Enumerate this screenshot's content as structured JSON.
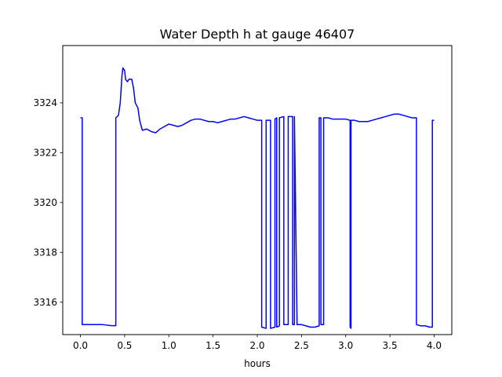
{
  "chart_data": {
    "type": "line",
    "title": "Water Depth h at gauge 46407",
    "xlabel": "hours",
    "ylabel": "",
    "xlim": [
      -0.2,
      4.2
    ],
    "ylim": [
      3314.7,
      3326.3
    ],
    "xticks": [
      0.0,
      0.5,
      1.0,
      1.5,
      2.0,
      2.5,
      3.0,
      3.5,
      4.0
    ],
    "xtick_labels": [
      "0.0",
      "0.5",
      "1.0",
      "1.5",
      "2.0",
      "2.5",
      "3.0",
      "3.5",
      "4.0"
    ],
    "yticks": [
      3316,
      3318,
      3320,
      3322,
      3324
    ],
    "ytick_labels": [
      "3316",
      "3318",
      "3320",
      "3322",
      "3324"
    ],
    "grid": false,
    "colors": {
      "series": "#0000ff",
      "axes": "#000000",
      "background": "#ffffff"
    },
    "series": [
      {
        "x": [
          0.0,
          0.02,
          0.02,
          0.05,
          0.1,
          0.15,
          0.2,
          0.25,
          0.3,
          0.35,
          0.4,
          0.4,
          0.43,
          0.45,
          0.47,
          0.48,
          0.5,
          0.51,
          0.53,
          0.55,
          0.58,
          0.6,
          0.62,
          0.65,
          0.67,
          0.7,
          0.75,
          0.8,
          0.85,
          0.9,
          0.95,
          1.0,
          1.05,
          1.1,
          1.15,
          1.2,
          1.25,
          1.3,
          1.35,
          1.4,
          1.45,
          1.5,
          1.55,
          1.6,
          1.65,
          1.7,
          1.75,
          1.8,
          1.85,
          1.9,
          1.95,
          2.0,
          2.05,
          2.05,
          2.1,
          2.1,
          2.15,
          2.15,
          2.2,
          2.2,
          2.22,
          2.22,
          2.25,
          2.25,
          2.3,
          2.3,
          2.35,
          2.35,
          2.4,
          2.4,
          2.42,
          2.42,
          2.45,
          2.5,
          2.55,
          2.6,
          2.65,
          2.7,
          2.7,
          2.72,
          2.72,
          2.75,
          2.75,
          2.8,
          2.85,
          2.9,
          2.95,
          3.0,
          3.05,
          3.05,
          3.06,
          3.06,
          3.1,
          3.15,
          3.2,
          3.25,
          3.3,
          3.35,
          3.4,
          3.45,
          3.5,
          3.55,
          3.6,
          3.65,
          3.7,
          3.75,
          3.8,
          3.8,
          3.85,
          3.9,
          3.95,
          3.98,
          3.98,
          4.0
        ],
        "y": [
          3323.4,
          3323.4,
          3315.1,
          3315.1,
          3315.1,
          3315.1,
          3315.1,
          3315.1,
          3315.08,
          3315.06,
          3315.06,
          3323.4,
          3323.5,
          3324.0,
          3325.1,
          3325.4,
          3325.3,
          3324.95,
          3324.85,
          3324.95,
          3324.95,
          3324.6,
          3324.0,
          3323.8,
          3323.3,
          3322.9,
          3322.95,
          3322.85,
          3322.8,
          3322.95,
          3323.05,
          3323.15,
          3323.1,
          3323.05,
          3323.1,
          3323.2,
          3323.3,
          3323.35,
          3323.35,
          3323.3,
          3323.25,
          3323.25,
          3323.2,
          3323.25,
          3323.3,
          3323.35,
          3323.35,
          3323.4,
          3323.45,
          3323.4,
          3323.35,
          3323.3,
          3323.3,
          3315.0,
          3314.95,
          3323.3,
          3323.3,
          3314.95,
          3315.0,
          3323.35,
          3323.4,
          3315.0,
          3315.05,
          3323.4,
          3323.45,
          3315.1,
          3315.1,
          3323.45,
          3323.45,
          3315.1,
          3315.1,
          3323.45,
          3315.1,
          3315.1,
          3315.05,
          3315.0,
          3315.0,
          3315.05,
          3323.4,
          3323.4,
          3315.1,
          3315.1,
          3323.4,
          3323.4,
          3323.35,
          3323.35,
          3323.35,
          3323.35,
          3323.3,
          3315.0,
          3314.95,
          3323.3,
          3323.3,
          3323.25,
          3323.25,
          3323.25,
          3323.3,
          3323.35,
          3323.4,
          3323.45,
          3323.5,
          3323.55,
          3323.55,
          3323.5,
          3323.45,
          3323.4,
          3323.4,
          3315.1,
          3315.05,
          3315.05,
          3315.0,
          3315.0,
          3323.3,
          3323.3
        ]
      }
    ]
  }
}
